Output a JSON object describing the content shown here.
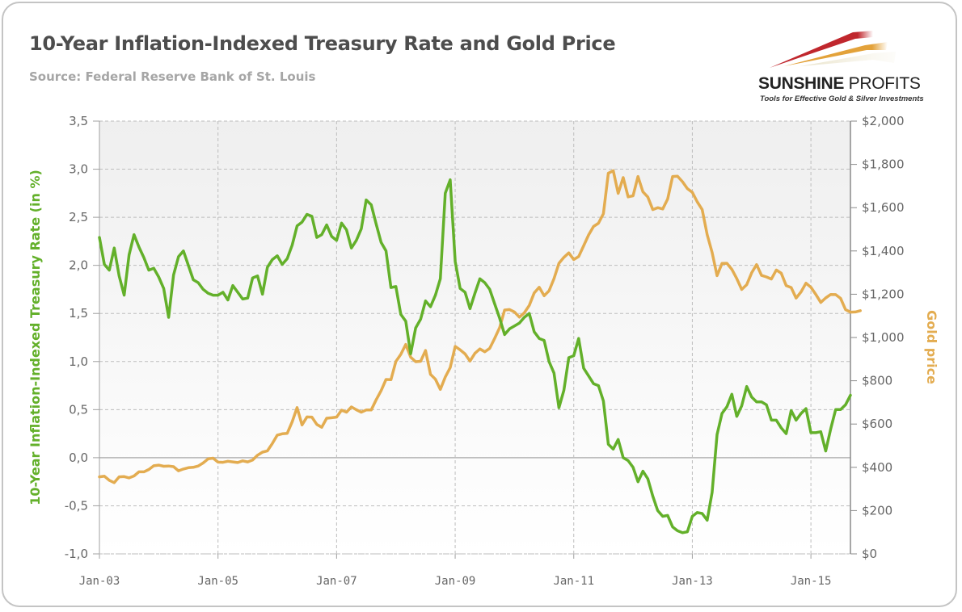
{
  "title": "10-Year Inflation-Indexed Treasury Rate and Gold Price",
  "subtitle": "Source: Federal Reserve Bank of St. Louis",
  "logo": {
    "name_bold": "SUNSHINE",
    "name_regular": " PROFITS",
    "tagline": "Tools for Effective Gold & Silver Investments"
  },
  "colors": {
    "rate": "#63b02a",
    "gold": "#e3ac50",
    "grid": "#bdbdbd",
    "axis": "#a0a0a0"
  },
  "chart_data": {
    "type": "line",
    "title": "10-Year Inflation-Indexed Treasury Rate and Gold Price",
    "subtitle": "Source: Federal Reserve Bank of St. Louis",
    "x_start": "Jan-03",
    "x_frequency": "monthly",
    "x_tick_labels": [
      "Jan-03",
      "Jan-05",
      "Jan-07",
      "Jan-09",
      "Jan-11",
      "Jan-13",
      "Jan-15"
    ],
    "xlim_months": [
      0,
      152
    ],
    "ylabel_left": "10-Year Inflation-Indexed Treasury Rate (in %)",
    "ylabel_right": "Gold price",
    "ylim_left": [
      -1.0,
      3.5
    ],
    "ylim_right": [
      0,
      2000
    ],
    "y_tick_labels_left": [
      "3,5",
      "3,0",
      "2,5",
      "2,0",
      "1,5",
      "1,0",
      "0,5",
      "0,0",
      "-0,5",
      "-1,0"
    ],
    "y_tick_labels_right": [
      "$2,000",
      "$1,800",
      "$1,600",
      "$1,400",
      "$1,200",
      "$1,000",
      "$800",
      "$600",
      "$400",
      "$200",
      "$0"
    ],
    "grid": true,
    "legend": "none",
    "series": [
      {
        "name": "10-Year Inflation-Indexed Treasury Rate",
        "axis": "left",
        "values": [
          2.29,
          2.01,
          1.95,
          2.18,
          1.89,
          1.69,
          2.11,
          2.32,
          2.19,
          2.08,
          1.95,
          1.97,
          1.88,
          1.76,
          1.46,
          1.9,
          2.09,
          2.15,
          2.0,
          1.85,
          1.82,
          1.75,
          1.71,
          1.69,
          1.69,
          1.72,
          1.64,
          1.79,
          1.72,
          1.65,
          1.66,
          1.87,
          1.89,
          1.7,
          1.98,
          2.06,
          2.1,
          2.01,
          2.07,
          2.21,
          2.41,
          2.45,
          2.53,
          2.51,
          2.29,
          2.32,
          2.42,
          2.3,
          2.26,
          2.44,
          2.37,
          2.18,
          2.26,
          2.38,
          2.68,
          2.63,
          2.43,
          2.24,
          2.15,
          1.77,
          1.78,
          1.49,
          1.42,
          1.08,
          1.35,
          1.44,
          1.63,
          1.57,
          1.69,
          1.86,
          2.75,
          2.89,
          2.04,
          1.76,
          1.72,
          1.55,
          1.71,
          1.86,
          1.82,
          1.75,
          1.6,
          1.45,
          1.28,
          1.34,
          1.37,
          1.4,
          1.46,
          1.5,
          1.31,
          1.24,
          1.22,
          1.0,
          0.88,
          0.52,
          0.7,
          1.04,
          1.06,
          1.24,
          0.93,
          0.85,
          0.77,
          0.75,
          0.59,
          0.14,
          0.09,
          0.19,
          0.0,
          -0.03,
          -0.1,
          -0.25,
          -0.14,
          -0.22,
          -0.4,
          -0.55,
          -0.61,
          -0.6,
          -0.72,
          -0.76,
          -0.78,
          -0.77,
          -0.61,
          -0.57,
          -0.58,
          -0.65,
          -0.36,
          0.24,
          0.46,
          0.53,
          0.66,
          0.43,
          0.54,
          0.74,
          0.63,
          0.58,
          0.58,
          0.55,
          0.39,
          0.39,
          0.31,
          0.25,
          0.49,
          0.39,
          0.46,
          0.51,
          0.26,
          0.26,
          0.27,
          0.07,
          0.3,
          0.5,
          0.5,
          0.55,
          0.65
        ]
      },
      {
        "name": "Gold price",
        "axis": "right",
        "values": [
          356,
          359,
          340,
          329,
          356,
          357,
          351,
          360,
          379,
          379,
          390,
          407,
          410,
          405,
          406,
          403,
          384,
          392,
          398,
          400,
          406,
          420,
          439,
          442,
          424,
          423,
          428,
          425,
          422,
          430,
          425,
          434,
          456,
          470,
          476,
          510,
          549,
          555,
          557,
          610,
          676,
          596,
          633,
          632,
          598,
          585,
          627,
          629,
          632,
          664,
          655,
          679,
          666,
          655,
          665,
          665,
          712,
          754,
          806,
          805,
          889,
          922,
          968,
          909,
          888,
          890,
          940,
          830,
          807,
          760,
          817,
          861,
          959,
          943,
          924,
          891,
          927,
          947,
          934,
          950,
          996,
          1046,
          1127,
          1129,
          1118,
          1094,
          1114,
          1148,
          1206,
          1232,
          1193,
          1216,
          1272,
          1343,
          1370,
          1391,
          1360,
          1374,
          1424,
          1474,
          1513,
          1528,
          1572,
          1759,
          1771,
          1666,
          1739,
          1650,
          1655,
          1744,
          1673,
          1649,
          1591,
          1600,
          1594,
          1640,
          1744,
          1745,
          1720,
          1688,
          1671,
          1627,
          1591,
          1475,
          1393,
          1286,
          1342,
          1343,
          1315,
          1272,
          1222,
          1244,
          1299,
          1337,
          1287,
          1280,
          1270,
          1312,
          1297,
          1240,
          1231,
          1182,
          1211,
          1251,
          1232,
          1199,
          1162,
          1183,
          1199,
          1198,
          1181,
          1129,
          1117,
          1118,
          1124
        ]
      }
    ]
  }
}
